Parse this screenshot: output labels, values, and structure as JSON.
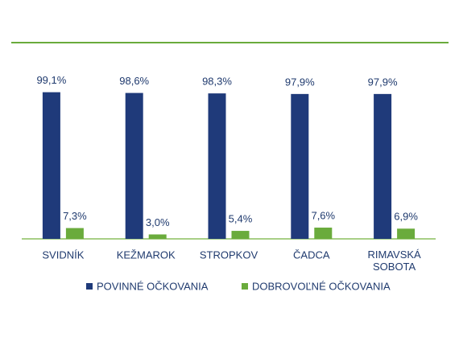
{
  "chart_data": {
    "type": "bar",
    "categories": [
      "SVIDNÍK",
      "KEŽMAROK",
      "STROPKOV",
      "ČADCA",
      "RIMAVSKÁ SOBOTA"
    ],
    "series": [
      {
        "name": "POVINNÉ OČKOVANIA",
        "color": "#1f3a7a",
        "values": [
          99.1,
          98.6,
          98.3,
          97.9,
          97.9
        ],
        "value_labels": [
          "99,1%",
          "98,6%",
          "98,3%",
          "97,9%",
          "97,9%"
        ]
      },
      {
        "name": "DOBROVOĽNÉ OČKOVANIA",
        "color": "#6aab3c",
        "values": [
          7.3,
          3.0,
          5.4,
          7.6,
          6.9
        ],
        "value_labels": [
          "7,3%",
          "3,0%",
          "5,4%",
          "7,6%",
          "6,9%"
        ]
      }
    ]
  }
}
